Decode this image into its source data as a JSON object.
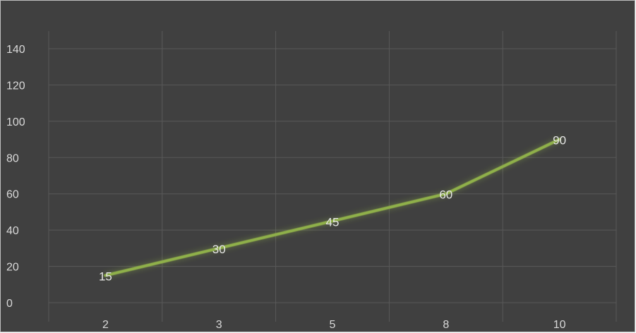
{
  "chart_data": {
    "type": "line",
    "categories": [
      "2",
      "3",
      "5",
      "8",
      "10"
    ],
    "values": [
      15,
      30,
      45,
      60,
      90
    ],
    "data_labels": [
      "15",
      "30",
      "45",
      "60",
      "90"
    ],
    "title": "",
    "xlabel": "",
    "ylabel": "",
    "ylim": [
      0,
      140
    ],
    "y_ticks": [
      "0",
      "20",
      "40",
      "60",
      "80",
      "100",
      "120",
      "140"
    ],
    "grid": true,
    "legend": "none",
    "colors": {
      "background": "#404040",
      "grid": "#595959",
      "line": "#8fb04a",
      "line_glow": "#a8d04a",
      "text": "#d9d9d9"
    }
  }
}
